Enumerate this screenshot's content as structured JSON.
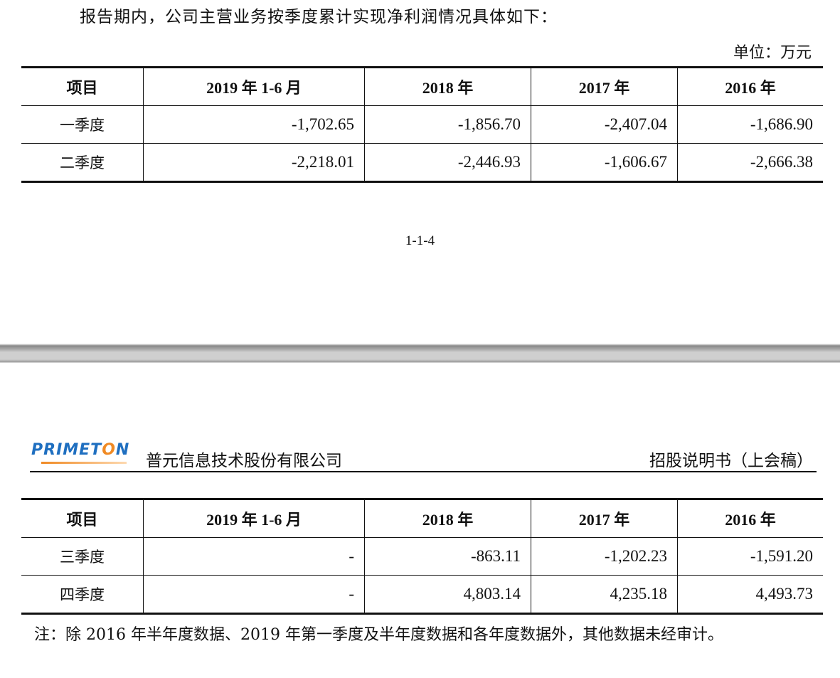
{
  "intro": "报告期内，公司主营业务按季度累计实现净利润情况具体如下：",
  "unit": "单位：万元",
  "headers": [
    "项目",
    "2019 年 1-6 月",
    "2018 年",
    "2017 年",
    "2016 年"
  ],
  "table1": [
    [
      "一季度",
      "-1,702.65",
      "-1,856.70",
      "-2,407.04",
      "-1,686.90"
    ],
    [
      "二季度",
      "-2,218.01",
      "-2,446.93",
      "-1,606.67",
      "-2,666.38"
    ]
  ],
  "page_number": "1-1-4",
  "header": {
    "logo": "PRIMETON",
    "company": "普元信息技术股份有限公司",
    "doc_title": "招股说明书（上会稿）"
  },
  "table2": [
    [
      "三季度",
      "-",
      "-863.11",
      "-1,202.23",
      "-1,591.20"
    ],
    [
      "四季度",
      "-",
      "4,803.14",
      "4,235.18",
      "4,493.73"
    ]
  ],
  "note": "注：除 2016 年半年度数据、2019 年第一季度及半年度数据和各年度数据外，其他数据未经审计。"
}
